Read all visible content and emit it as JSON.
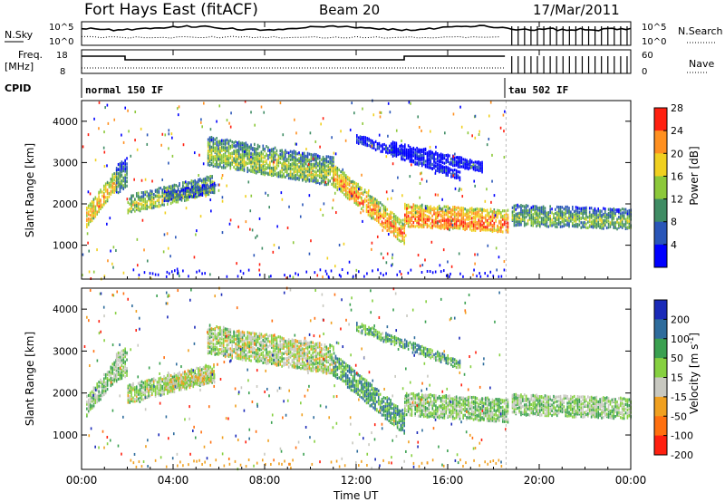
{
  "header": {
    "radar": "Fort Hays East (fitACF)",
    "beam": "Beam 20",
    "date": "17/Mar/2011"
  },
  "noise_panel": {
    "left_label": "N.Sky",
    "left_top": "10^5",
    "left_bottom": "10^0",
    "right_label": "N.Search",
    "right_top": "10^5",
    "right_bottom": "10^0"
  },
  "freq_panel": {
    "left_label_1": "Freq.",
    "left_label_2": "[MHz]",
    "left_top": "18",
    "left_bottom": "8",
    "right_label": "Nave",
    "right_top": "60",
    "right_bottom": "0"
  },
  "cpid": {
    "label": "CPID",
    "mode1": "normal 150 IF",
    "mode2": "tau 502 IF"
  },
  "chart_data": [
    {
      "type": "heatmap",
      "parameter": "Power",
      "ylabel": "Slant Range [km]",
      "xlabel": "Time UT",
      "ylim": [
        180,
        4500
      ],
      "yticks": [
        1000,
        2000,
        3000,
        4000
      ],
      "x_ticks": [
        "00:00",
        "04:00",
        "08:00",
        "12:00",
        "16:00",
        "20:00",
        "00:00"
      ],
      "x_range_hours": [
        0,
        24
      ],
      "colorbar": {
        "label": "Power [dB]",
        "ticks": [
          "4",
          "8",
          "12",
          "16",
          "20",
          "24",
          "28"
        ],
        "colors": [
          "#0000ff",
          "#2a56b8",
          "#3f8c64",
          "#8cc83a",
          "#f0d020",
          "#ff9020",
          "#ff2010"
        ]
      },
      "bands": [
        {
          "t": [
            0.2,
            1.5
          ],
          "center": [
            1700,
            2600
          ],
          "width": 500,
          "level": 0.75
        },
        {
          "t": [
            1.5,
            2.0
          ],
          "center": [
            2600,
            2800
          ],
          "width": 700,
          "level": 0.4
        },
        {
          "t": [
            2.0,
            5.8
          ],
          "center": [
            2000,
            2500
          ],
          "width": 450,
          "level": 0.6
        },
        {
          "t": [
            3.6,
            5.8
          ],
          "center": [
            2200,
            2400
          ],
          "width": 250,
          "level": 0.35
        },
        {
          "t": [
            5.5,
            11.0
          ],
          "center": [
            3300,
            2800
          ],
          "width": 700,
          "level": 0.55
        },
        {
          "t": [
            11.0,
            14.1
          ],
          "center": [
            2700,
            1300
          ],
          "width": 550,
          "level": 0.8
        },
        {
          "t": [
            14.1,
            18.6
          ],
          "center": [
            1750,
            1600
          ],
          "width": 550,
          "level": 0.85
        },
        {
          "t": [
            18.8,
            24.0
          ],
          "center": [
            1750,
            1650
          ],
          "width": 500,
          "level": 0.5
        },
        {
          "t": [
            12.0,
            16.5
          ],
          "center": [
            3600,
            2700
          ],
          "width": 220,
          "level": 0.2
        },
        {
          "t": [
            13.5,
            17.5
          ],
          "center": [
            3400,
            2900
          ],
          "width": 250,
          "level": 0.15
        }
      ]
    },
    {
      "type": "heatmap",
      "parameter": "Velocity",
      "ylabel": "Slant Range [km]",
      "xlabel": "Time UT",
      "ylim": [
        180,
        4500
      ],
      "yticks": [
        1000,
        2000,
        3000,
        4000
      ],
      "x_ticks": [
        "00:00",
        "04:00",
        "08:00",
        "12:00",
        "16:00",
        "20:00",
        "00:00"
      ],
      "x_range_hours": [
        0,
        24
      ],
      "colorbar": {
        "label": "Velocity [m s-1]",
        "ticks": [
          "200",
          "100",
          "50",
          "15",
          "-15",
          "-50",
          "-100",
          "-200"
        ],
        "colors": [
          "#1a2ab8",
          "#2e6c9c",
          "#3aa050",
          "#86d040",
          "#c8c8c0",
          "#f0a020",
          "#ff7010",
          "#ff2010"
        ]
      },
      "bands": [
        {
          "t": [
            0.2,
            1.5
          ],
          "center": [
            1700,
            2600
          ],
          "width": 500,
          "level": 0.45
        },
        {
          "t": [
            1.5,
            2.0
          ],
          "center": [
            2600,
            2800
          ],
          "width": 700,
          "level": 0.45
        },
        {
          "t": [
            2.0,
            5.8
          ],
          "center": [
            2000,
            2500
          ],
          "width": 450,
          "level": 0.5
        },
        {
          "t": [
            3.6,
            5.8
          ],
          "center": [
            2200,
            2400
          ],
          "width": 250,
          "level": 0.55
        },
        {
          "t": [
            5.5,
            11.0
          ],
          "center": [
            3300,
            2800
          ],
          "width": 700,
          "level": 0.5
        },
        {
          "t": [
            11.0,
            14.1
          ],
          "center": [
            2700,
            1300
          ],
          "width": 550,
          "level": 0.3
        },
        {
          "t": [
            14.1,
            18.6
          ],
          "center": [
            1750,
            1600
          ],
          "width": 550,
          "level": 0.45
        },
        {
          "t": [
            18.8,
            24.0
          ],
          "center": [
            1750,
            1650
          ],
          "width": 500,
          "level": 0.45
        },
        {
          "t": [
            12.0,
            16.5
          ],
          "center": [
            3600,
            2700
          ],
          "width": 220,
          "level": 0.35
        }
      ]
    }
  ]
}
